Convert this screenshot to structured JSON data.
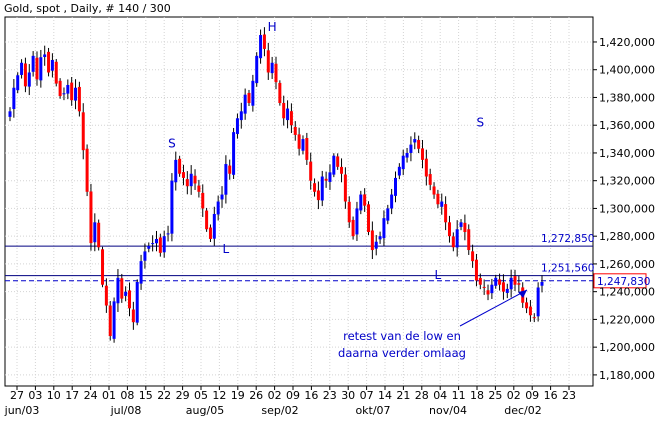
{
  "chart_data": {
    "type": "candlestick",
    "title": "Gold, spot , Daily, # 140 / 300",
    "ylim": [
      1.172,
      1.438
    ],
    "y_ticks": [
      "1,180,000",
      "1,200,000",
      "1,220,000",
      "1,240,000",
      "1,260,000",
      "1,280,000",
      "1,300,000",
      "1,320,000",
      "1,340,000",
      "1,360,000",
      "1,380,000",
      "1,400,000",
      "1,420,000"
    ],
    "x_tick_labels": [
      "27",
      "03",
      "10",
      "17",
      "24",
      "01",
      "08",
      "15",
      "22",
      "29",
      "05",
      "12",
      "19",
      "26",
      "02",
      "09",
      "16",
      "23",
      "30",
      "07",
      "14",
      "21",
      "28",
      "04",
      "11",
      "18",
      "25",
      "02",
      "09",
      "16",
      "23"
    ],
    "month_labels": [
      "jun/03",
      "jul/08",
      "aug/05",
      "sep/02",
      "okt/07",
      "nov/04",
      "dec/02"
    ],
    "up_color": "#0000ff",
    "down_color": "#ff0000",
    "closes": [
      1.37,
      1.387,
      1.396,
      1.405,
      1.388,
      1.398,
      1.41,
      1.393,
      1.409,
      1.411,
      1.398,
      1.407,
      1.39,
      1.381,
      1.383,
      1.389,
      1.378,
      1.387,
      1.37,
      1.342,
      1.312,
      1.275,
      1.29,
      1.272,
      1.245,
      1.23,
      1.208,
      1.233,
      1.25,
      1.235,
      1.24,
      1.228,
      1.218,
      1.247,
      1.262,
      1.269,
      1.273,
      1.275,
      1.278,
      1.268,
      1.28,
      1.282,
      1.32,
      1.335,
      1.325,
      1.322,
      1.316,
      1.325,
      1.318,
      1.312,
      1.3,
      1.285,
      1.278,
      1.296,
      1.305,
      1.31,
      1.332,
      1.325,
      1.355,
      1.365,
      1.37,
      1.382,
      1.376,
      1.392,
      1.41,
      1.425,
      1.415,
      1.398,
      1.405,
      1.391,
      1.376,
      1.365,
      1.372,
      1.36,
      1.353,
      1.343,
      1.35,
      1.335,
      1.32,
      1.312,
      1.306,
      1.323,
      1.32,
      1.326,
      1.338,
      1.33,
      1.325,
      1.305,
      1.29,
      1.28,
      1.3,
      1.31,
      1.302,
      1.283,
      1.27,
      1.276,
      1.28,
      1.293,
      1.3,
      1.31,
      1.322,
      1.33,
      1.338,
      1.34,
      1.346,
      1.35,
      1.343,
      1.335,
      1.323,
      1.317,
      1.31,
      1.303,
      1.305,
      1.29,
      1.28,
      1.272,
      1.285,
      1.29,
      1.283,
      1.27,
      1.262,
      1.248,
      1.245,
      1.243,
      1.238,
      1.245,
      1.25,
      1.245,
      1.24,
      1.242,
      1.25,
      1.245,
      1.245,
      1.232,
      1.228,
      1.223,
      1.221,
      1.243,
      1.247
    ],
    "levels": [
      {
        "value": 1.27285,
        "label": "1,272,850",
        "style": "solid"
      },
      {
        "value": 1.25156,
        "label": "1,251,560",
        "style": "solid"
      },
      {
        "value": 1.24783,
        "label": "1,247,830",
        "style": "dashed"
      }
    ],
    "pattern_labels": [
      {
        "text": "S",
        "index": 42,
        "price": 1.344
      },
      {
        "text": "L",
        "index": 56,
        "price": 1.268
      },
      {
        "text": "H",
        "index": 68,
        "price": 1.428
      },
      {
        "text": "L",
        "index": 111,
        "price": 1.249
      },
      {
        "text": "S",
        "index": 122,
        "price": 1.359
      }
    ],
    "annotation": {
      "lines": [
        "retest van de low en",
        "daarna verder omlaag"
      ]
    }
  }
}
